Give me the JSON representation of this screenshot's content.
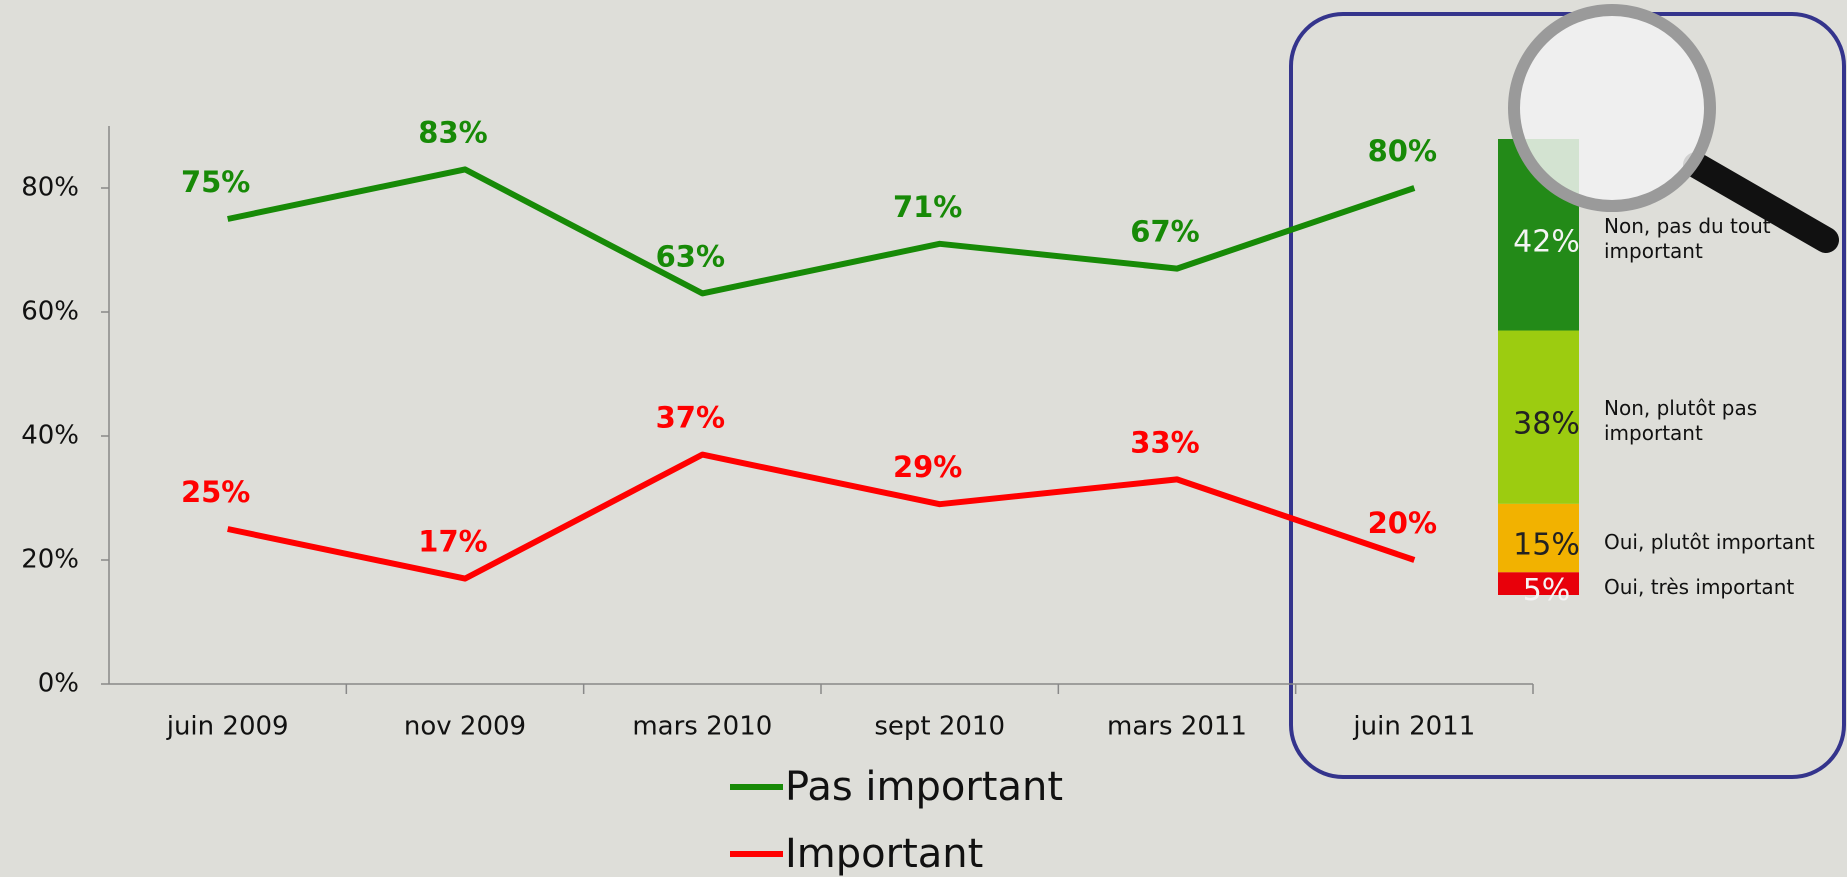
{
  "chart_data": [
    {
      "type": "line",
      "categories": [
        "juin 2009",
        "nov 2009",
        "mars 2010",
        "sept 2010",
        "mars 2011",
        "juin 2011"
      ],
      "series": [
        {
          "name": "Pas important",
          "color": "#178a07",
          "values": [
            75,
            83,
            63,
            71,
            67,
            80
          ],
          "value_labels": [
            "75%",
            "83%",
            "63%",
            "71%",
            "67%",
            "80%"
          ]
        },
        {
          "name": "Important",
          "color": "#ff0000",
          "values": [
            25,
            17,
            37,
            29,
            33,
            20
          ],
          "value_labels": [
            "25%",
            "17%",
            "37%",
            "29%",
            "33%",
            "20%"
          ]
        }
      ],
      "ylim": [
        0,
        90
      ],
      "yticks": [
        {
          "value": 0,
          "label": "0%"
        },
        {
          "value": 20,
          "label": "20%"
        },
        {
          "value": 40,
          "label": "40%"
        },
        {
          "value": 60,
          "label": "60%"
        },
        {
          "value": 80,
          "label": "80%"
        }
      ],
      "legend": "bottom"
    },
    {
      "type": "stacked_bar",
      "categories": [
        "Oui, très important",
        "Oui, plutôt important",
        "Non, plutôt pas important",
        "Non, pas du tout important"
      ],
      "values": [
        5,
        15,
        38,
        42
      ],
      "value_labels": [
        "5%",
        "15%",
        "38%",
        "42%"
      ],
      "colors": [
        "#e8000a",
        "#f2b200",
        "#9ccc10",
        "#238a18"
      ],
      "ylim": [
        0,
        100
      ]
    }
  ]
}
